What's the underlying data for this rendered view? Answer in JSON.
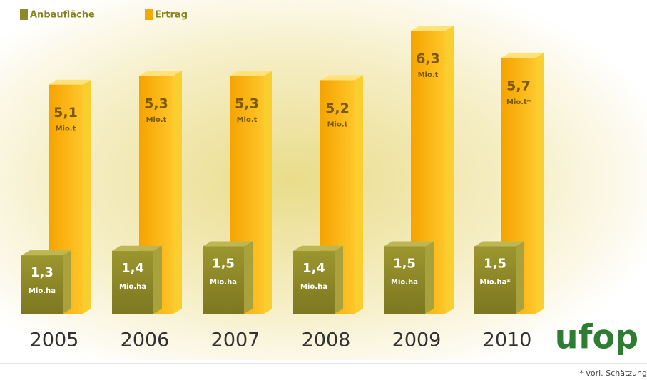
{
  "chart_data": {
    "type": "bar3d",
    "categories": [
      "2005",
      "2006",
      "2007",
      "2008",
      "2009",
      "2010"
    ],
    "series": [
      {
        "name": "Anbaufläche",
        "color": "#8f8a28",
        "values": [
          1.3,
          1.4,
          1.5,
          1.4,
          1.5,
          1.5
        ],
        "value_labels": [
          "1,3",
          "1,4",
          "1,5",
          "1,4",
          "1,5",
          "1,5"
        ],
        "unit_labels": [
          "Mio.ha",
          "Mio.ha",
          "Mio.ha",
          "Mio.ha",
          "Mio.ha",
          "Mio.ha*"
        ]
      },
      {
        "name": "Ertrag",
        "color": "#f7a800",
        "values": [
          5.1,
          5.3,
          5.3,
          5.2,
          6.3,
          5.7
        ],
        "value_labels": [
          "5,1",
          "5,3",
          "5,3",
          "5,2",
          "6,3",
          "5,7"
        ],
        "unit_labels": [
          "Mio.t",
          "Mio.t",
          "Mio.t",
          "Mio.t",
          "Mio.t",
          "Mio.t*"
        ]
      }
    ],
    "logo": "ufop",
    "footnote": "* vorl. Schätzung"
  }
}
